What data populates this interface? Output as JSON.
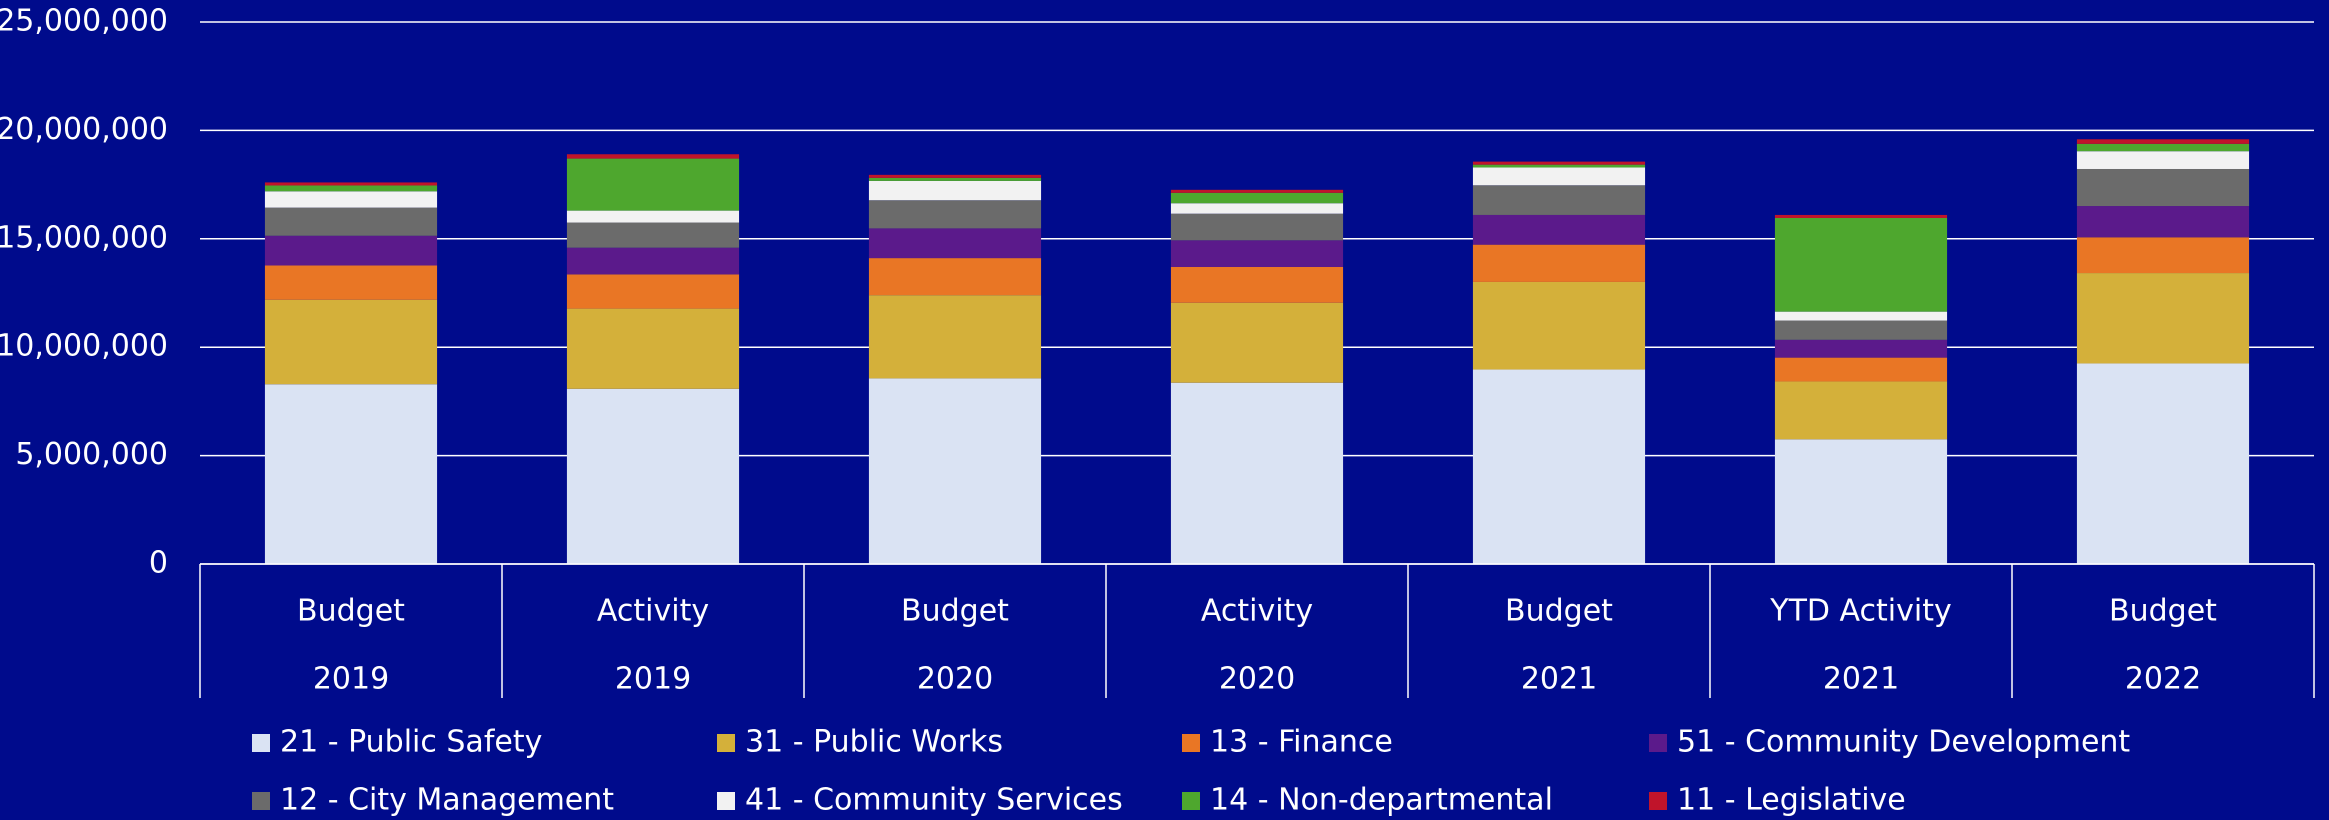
{
  "chart_data": {
    "type": "stacked_bar",
    "categories": [
      "Budget",
      "Activity",
      "Budget",
      "Activity",
      "Budget",
      "YTD Activity",
      "Budget"
    ],
    "years": [
      "2019",
      "2019",
      "2020",
      "2020",
      "2021",
      "2021",
      "2022"
    ],
    "ylim": [
      0,
      25000000
    ],
    "yticks": [
      0,
      {
        "value": 5000000,
        "label": "5,000,000"
      },
      {
        "value": 10000000,
        "label": "10,000,000"
      },
      {
        "value": 15000000,
        "label": "15,000,000"
      },
      {
        "value": 20000000,
        "label": "20,000,000"
      },
      {
        "value": 25000000,
        "label": "25,000,000"
      }
    ],
    "grid": true,
    "legend": "bottom",
    "series": [
      {
        "name": "21 - Public Safety",
        "color": "#dae3f3",
        "values": [
          8290000,
          8080000,
          8560000,
          8360000,
          8970000,
          5750000,
          9250000
        ]
      },
      {
        "name": "31 - Public Works",
        "color": "#d4b03a",
        "values": [
          3900000,
          3700000,
          3840000,
          3690000,
          4040000,
          2670000,
          4170000
        ]
      },
      {
        "name": "13 - Finance",
        "color": "#e97625",
        "values": [
          1580000,
          1580000,
          1710000,
          1650000,
          1720000,
          1100000,
          1650000
        ]
      },
      {
        "name": "51 - Community Development",
        "color": "#5b1a8b",
        "values": [
          1370000,
          1230000,
          1370000,
          1230000,
          1370000,
          820000,
          1440000
        ]
      },
      {
        "name": "12 - City Management",
        "color": "#6b6b6b",
        "values": [
          1300000,
          1160000,
          1300000,
          1230000,
          1370000,
          890000,
          1710000
        ]
      },
      {
        "name": "41 - Community Services",
        "color": "#f2f2f2",
        "values": [
          750000,
          550000,
          890000,
          480000,
          820000,
          410000,
          820000
        ]
      },
      {
        "name": "14 - Non-departmental",
        "color": "#4ea72e",
        "values": [
          270000,
          2400000,
          140000,
          480000,
          130000,
          4320000,
          340000
        ]
      },
      {
        "name": "11 - Legislative",
        "color": "#c0142a",
        "values": [
          140000,
          200000,
          140000,
          140000,
          140000,
          140000,
          210000
        ]
      }
    ]
  }
}
